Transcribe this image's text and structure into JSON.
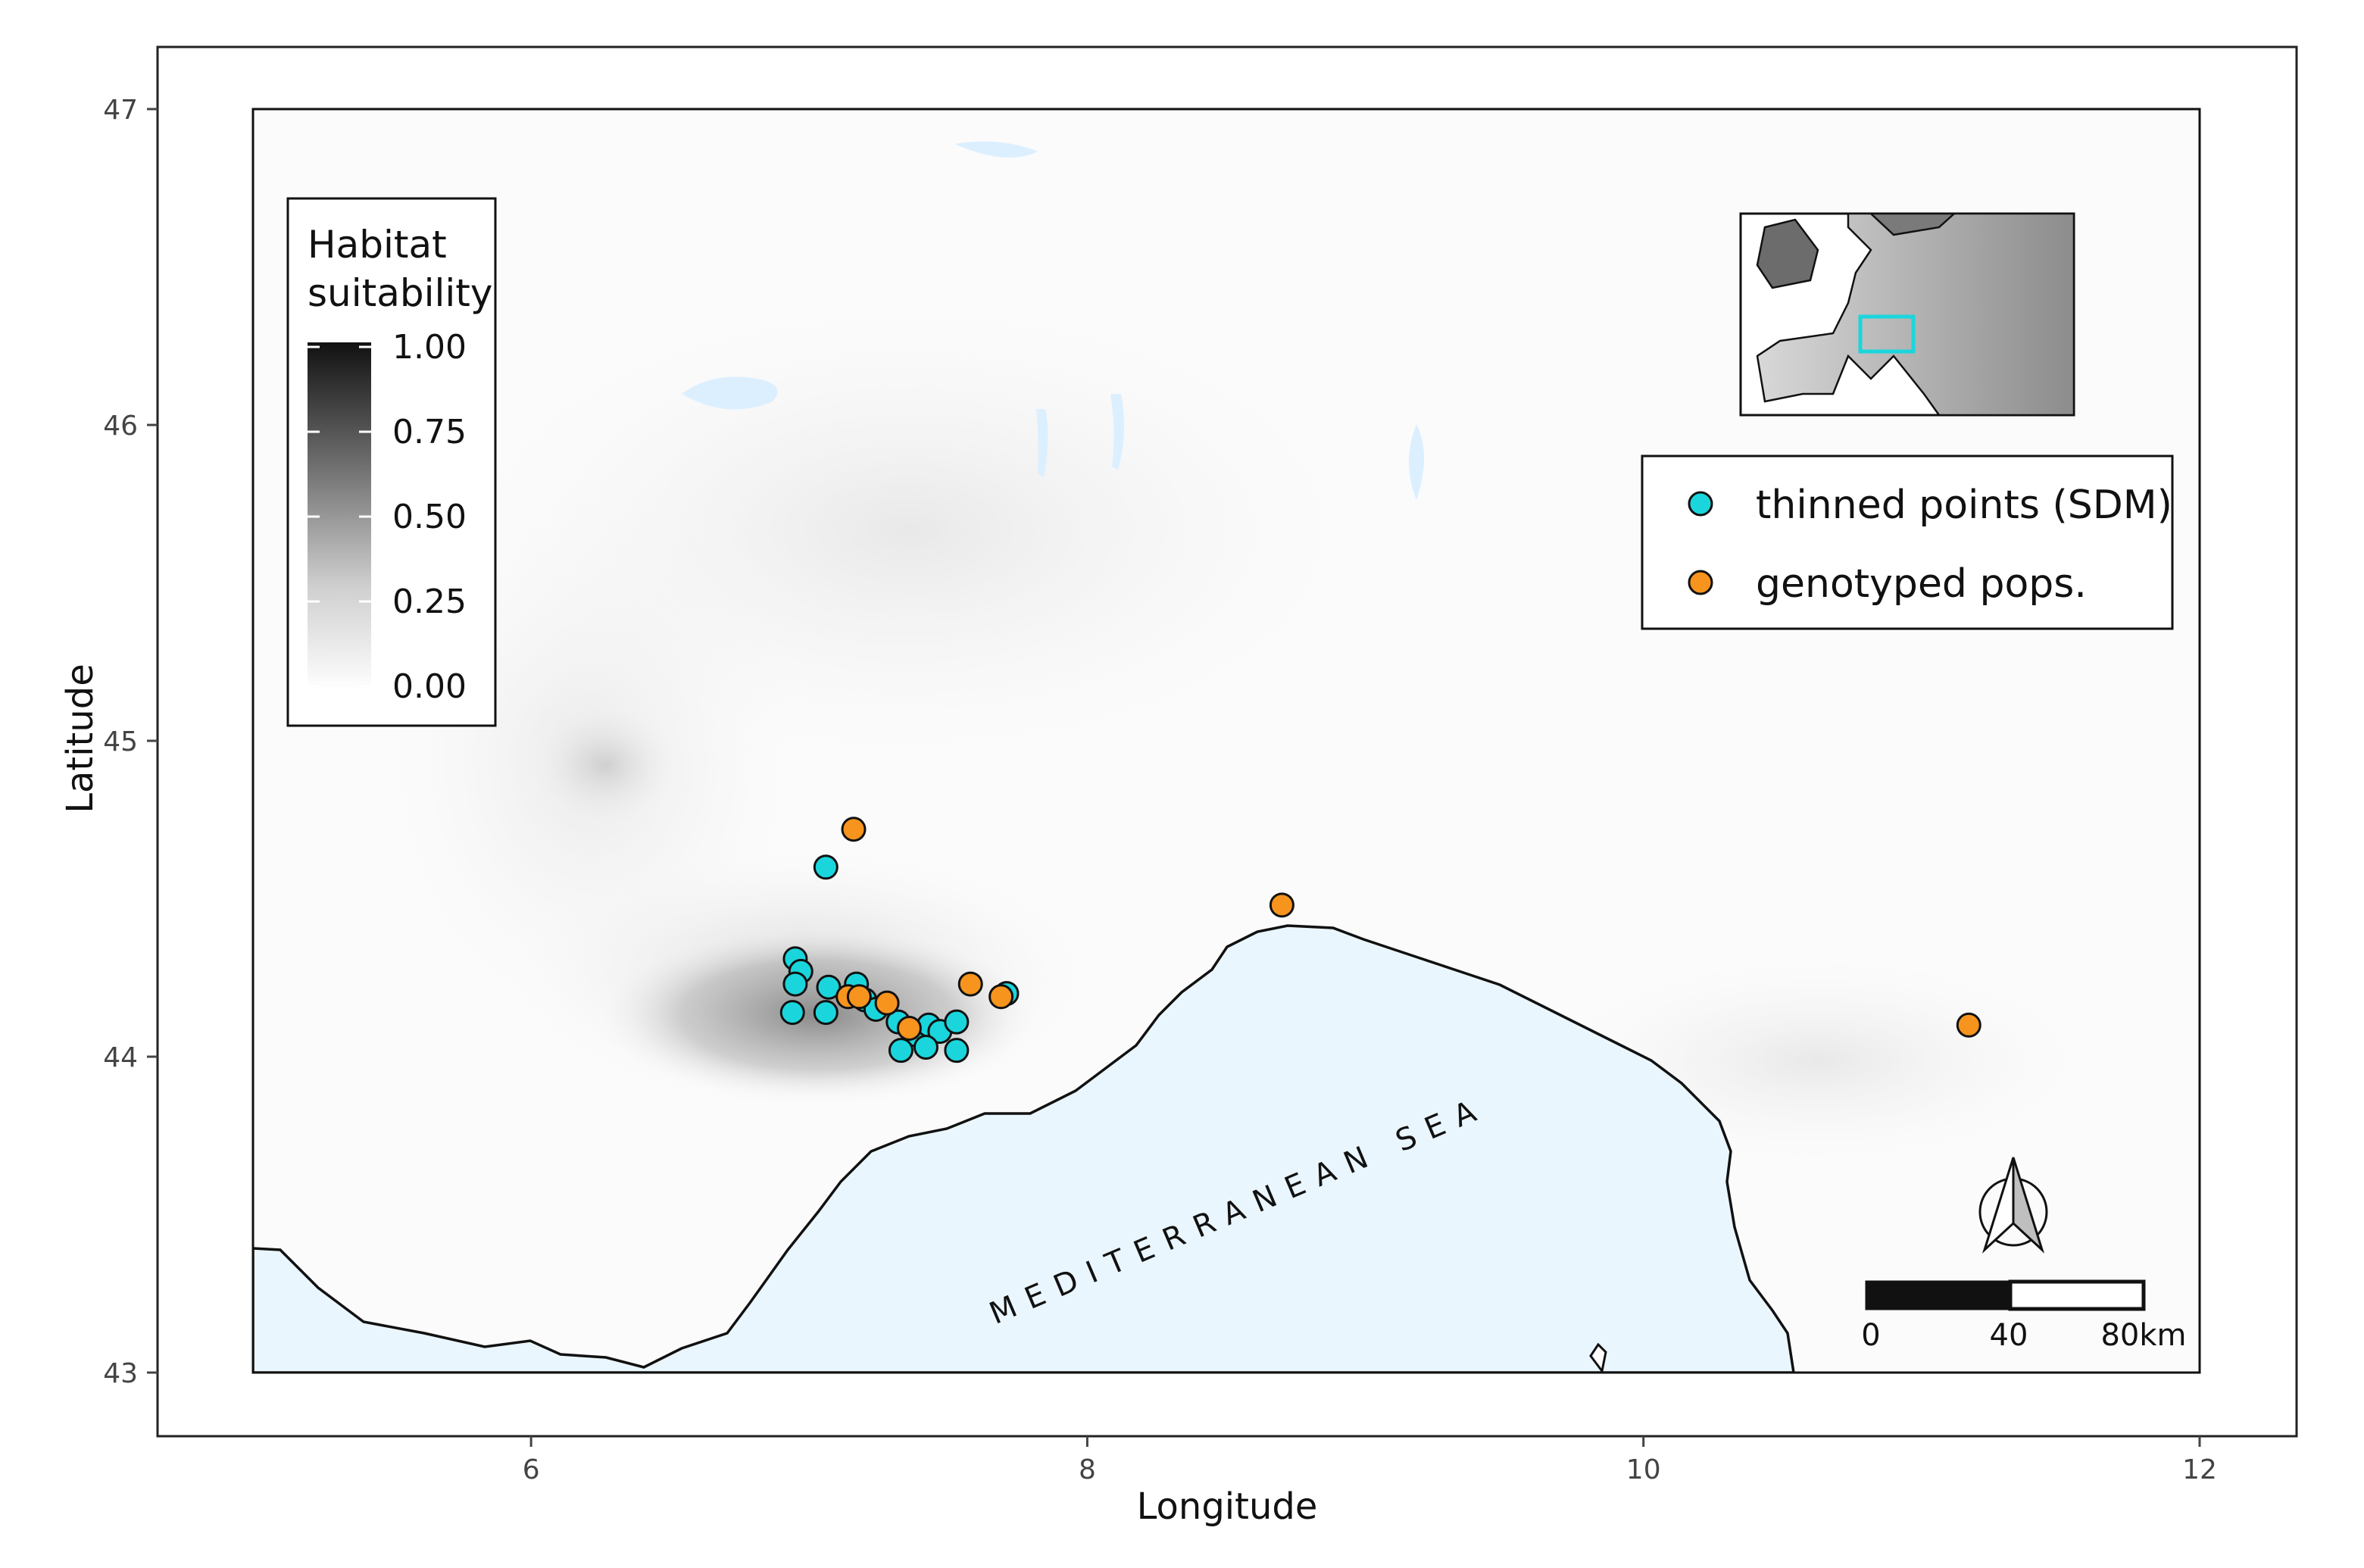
{
  "chart_data": {
    "type": "scatter",
    "xlabel": "Longitude",
    "ylabel": "Latitude",
    "xlim": [
      4.8,
      12.2
    ],
    "ylim": [
      42.8,
      47.2
    ],
    "x_ticks": [
      6,
      8,
      10,
      12
    ],
    "y_ticks": [
      43,
      44,
      45,
      46,
      47
    ],
    "map_extent": {
      "lon": [
        5.0,
        12.0
      ],
      "lat": [
        43.0,
        47.0
      ]
    },
    "grid": false,
    "sea_label": "MEDITERRANEAN SEA",
    "colors": {
      "thinned": "#1ad6dc",
      "genotyped": "#f7941d",
      "sea": "#eaf6fd"
    },
    "color_scale": {
      "title_lines": [
        "Habitat",
        "suitability"
      ],
      "ticks": [
        "1.00",
        "0.75",
        "0.50",
        "0.25",
        "0.00"
      ],
      "range": [
        0,
        1
      ]
    },
    "legend": {
      "position": "top-right",
      "entries": [
        {
          "label": "thinned points (SDM)",
          "color": "#1ad6dc"
        },
        {
          "label": "genotyped pops.",
          "color": "#f7941d"
        }
      ]
    },
    "scale_bar": {
      "ticks": [
        "0",
        "40",
        "80km"
      ]
    },
    "series": [
      {
        "name": "thinned points (SDM)",
        "color": "#1ad6dc",
        "points": [
          {
            "x": 7.06,
            "y": 44.6
          },
          {
            "x": 6.95,
            "y": 44.31
          },
          {
            "x": 6.97,
            "y": 44.27
          },
          {
            "x": 6.95,
            "y": 44.23
          },
          {
            "x": 7.07,
            "y": 44.22
          },
          {
            "x": 7.17,
            "y": 44.23
          },
          {
            "x": 6.94,
            "y": 44.14
          },
          {
            "x": 7.06,
            "y": 44.14
          },
          {
            "x": 7.2,
            "y": 44.18
          },
          {
            "x": 7.24,
            "y": 44.15
          },
          {
            "x": 7.32,
            "y": 44.11
          },
          {
            "x": 7.38,
            "y": 44.07
          },
          {
            "x": 7.43,
            "y": 44.1
          },
          {
            "x": 7.47,
            "y": 44.08
          },
          {
            "x": 7.53,
            "y": 44.11
          },
          {
            "x": 7.42,
            "y": 44.03
          },
          {
            "x": 7.33,
            "y": 44.02
          },
          {
            "x": 7.53,
            "y": 44.02
          },
          {
            "x": 7.71,
            "y": 44.2
          }
        ]
      },
      {
        "name": "genotyped pops.",
        "color": "#f7941d",
        "points": [
          {
            "x": 7.16,
            "y": 44.72
          },
          {
            "x": 7.14,
            "y": 44.19
          },
          {
            "x": 7.18,
            "y": 44.19
          },
          {
            "x": 7.28,
            "y": 44.17
          },
          {
            "x": 7.36,
            "y": 44.09
          },
          {
            "x": 7.58,
            "y": 44.23
          },
          {
            "x": 7.69,
            "y": 44.19
          },
          {
            "x": 8.7,
            "y": 44.48
          },
          {
            "x": 11.17,
            "y": 44.1
          }
        ]
      }
    ]
  }
}
